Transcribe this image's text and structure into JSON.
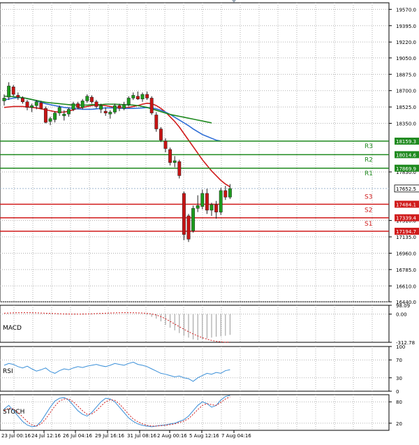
{
  "chart_data": {
    "type": "candlestick",
    "x_labels": [
      "23 Jul 00:16",
      "24 Jul 12:16",
      "26 Jul 04:16",
      "29 Jul 16:16",
      "31 Jul 08:16",
      "2 Aug 00:16",
      "5 Aug 12:16",
      "7 Aug 04:16"
    ],
    "price_axis": {
      "ticks": [
        "19570.0",
        "19395.0",
        "19220.0",
        "19050.0",
        "18875.0",
        "18700.0",
        "18525.0",
        "18350.0",
        "17830.0",
        "17310.0",
        "17135.0",
        "16960.0",
        "16785.0",
        "16610.0",
        "16440.0"
      ],
      "ylim": [
        16440,
        19640
      ]
    },
    "candles": [
      {
        "o": 18590,
        "h": 18660,
        "l": 18540,
        "c": 18620
      },
      {
        "o": 18630,
        "h": 18790,
        "l": 18600,
        "c": 18750
      },
      {
        "o": 18740,
        "h": 18760,
        "l": 18640,
        "c": 18660
      },
      {
        "o": 18650,
        "h": 18680,
        "l": 18600,
        "c": 18630
      },
      {
        "o": 18620,
        "h": 18640,
        "l": 18560,
        "c": 18580
      },
      {
        "o": 18580,
        "h": 18600,
        "l": 18490,
        "c": 18520
      },
      {
        "o": 18520,
        "h": 18560,
        "l": 18470,
        "c": 18540
      },
      {
        "o": 18540,
        "h": 18600,
        "l": 18500,
        "c": 18580
      },
      {
        "o": 18570,
        "h": 18590,
        "l": 18500,
        "c": 18510
      },
      {
        "o": 18510,
        "h": 18530,
        "l": 18350,
        "c": 18360
      },
      {
        "o": 18370,
        "h": 18420,
        "l": 18330,
        "c": 18400
      },
      {
        "o": 18390,
        "h": 18480,
        "l": 18360,
        "c": 18460
      },
      {
        "o": 18460,
        "h": 18540,
        "l": 18430,
        "c": 18520
      },
      {
        "o": 18430,
        "h": 18490,
        "l": 18380,
        "c": 18450
      },
      {
        "o": 18450,
        "h": 18520,
        "l": 18420,
        "c": 18500
      },
      {
        "o": 18500,
        "h": 18580,
        "l": 18480,
        "c": 18560
      },
      {
        "o": 18560,
        "h": 18580,
        "l": 18500,
        "c": 18520
      },
      {
        "o": 18520,
        "h": 18610,
        "l": 18500,
        "c": 18590
      },
      {
        "o": 18590,
        "h": 18660,
        "l": 18570,
        "c": 18640
      },
      {
        "o": 18630,
        "h": 18650,
        "l": 18560,
        "c": 18580
      },
      {
        "o": 18580,
        "h": 18600,
        "l": 18510,
        "c": 18530
      },
      {
        "o": 18500,
        "h": 18560,
        "l": 18460,
        "c": 18540
      },
      {
        "o": 18480,
        "h": 18520,
        "l": 18430,
        "c": 18460
      },
      {
        "o": 18450,
        "h": 18490,
        "l": 18400,
        "c": 18470
      },
      {
        "o": 18470,
        "h": 18560,
        "l": 18450,
        "c": 18540
      },
      {
        "o": 18540,
        "h": 18560,
        "l": 18480,
        "c": 18510
      },
      {
        "o": 18510,
        "h": 18580,
        "l": 18490,
        "c": 18550
      },
      {
        "o": 18550,
        "h": 18640,
        "l": 18530,
        "c": 18620
      },
      {
        "o": 18620,
        "h": 18680,
        "l": 18600,
        "c": 18650
      },
      {
        "o": 18640,
        "h": 18690,
        "l": 18600,
        "c": 18610
      },
      {
        "o": 18610,
        "h": 18680,
        "l": 18580,
        "c": 18660
      },
      {
        "o": 18660,
        "h": 18690,
        "l": 18600,
        "c": 18620
      },
      {
        "o": 18620,
        "h": 18640,
        "l": 18440,
        "c": 18460
      },
      {
        "o": 18440,
        "h": 18470,
        "l": 18260,
        "c": 18290
      },
      {
        "o": 18290,
        "h": 18310,
        "l": 18150,
        "c": 18170
      },
      {
        "o": 18160,
        "h": 18190,
        "l": 18040,
        "c": 18080
      },
      {
        "o": 18070,
        "h": 18090,
        "l": 17900,
        "c": 17930
      },
      {
        "o": 17930,
        "h": 18000,
        "l": 17880,
        "c": 17950
      },
      {
        "o": 17940,
        "h": 17960,
        "l": 17760,
        "c": 17790
      },
      {
        "o": 17600,
        "h": 17620,
        "l": 17100,
        "c": 17160
      },
      {
        "o": 17360,
        "h": 17380,
        "l": 17080,
        "c": 17110
      },
      {
        "o": 17200,
        "h": 17470,
        "l": 17180,
        "c": 17440
      },
      {
        "o": 17440,
        "h": 17580,
        "l": 17400,
        "c": 17470
      },
      {
        "o": 17460,
        "h": 17640,
        "l": 17430,
        "c": 17600
      },
      {
        "o": 17600,
        "h": 17650,
        "l": 17380,
        "c": 17420
      },
      {
        "o": 17420,
        "h": 17500,
        "l": 17360,
        "c": 17480
      },
      {
        "o": 17480,
        "h": 17520,
        "l": 17330,
        "c": 17400
      },
      {
        "o": 17400,
        "h": 17660,
        "l": 17370,
        "c": 17630
      },
      {
        "o": 17630,
        "h": 17680,
        "l": 17530,
        "c": 17560
      },
      {
        "o": 17560,
        "h": 17700,
        "l": 17540,
        "c": 17652
      }
    ],
    "moving_averages": [
      {
        "color": "#d01b1b",
        "values": [
          18520,
          18525,
          18530,
          18530,
          18530,
          18525,
          18520,
          18515,
          18505,
          18495,
          18485,
          18475,
          18470,
          18470,
          18480,
          18495,
          18510,
          18520,
          18530,
          18540,
          18545,
          18545,
          18540,
          18530,
          18520,
          18515,
          18515,
          18520,
          18530,
          18540,
          18555,
          18565,
          18560,
          18540,
          18510,
          18470,
          18420,
          18370,
          18310,
          18240,
          18170,
          18100,
          18030,
          17960,
          17900,
          17840,
          17790,
          17740,
          17700,
          17670
        ]
      },
      {
        "color": "#2f6fd6",
        "values": [
          18600,
          18610,
          18620,
          18625,
          18625,
          18615,
          18605,
          18590,
          18575,
          18560,
          18550,
          18540,
          18530,
          18520,
          18515,
          18510,
          18505,
          18500,
          18500,
          18500,
          18505,
          18510,
          18515,
          18515,
          18515,
          18512,
          18510,
          18510,
          18510,
          18512,
          18515,
          18518,
          18515,
          18505,
          18490,
          18470,
          18445,
          18415,
          18385,
          18355,
          18325,
          18290,
          18260,
          18230,
          18210,
          18190,
          18170,
          18160
        ]
      },
      {
        "color": "#1f8a1f",
        "values": [
          18640,
          18640,
          18635,
          18630,
          18625,
          18615,
          18605,
          18595,
          18585,
          18575,
          18570,
          18565,
          18560,
          18555,
          18550,
          18545,
          18545,
          18545,
          18545,
          18550,
          18550,
          18550,
          18555,
          18555,
          18555,
          18552,
          18550,
          18548,
          18545,
          18540,
          18530,
          18520,
          18505,
          18490,
          18475,
          18460,
          18445,
          18435,
          18425,
          18415,
          18405,
          18395,
          18385,
          18375,
          18365,
          18355
        ]
      }
    ],
    "levels": [
      {
        "name": "R3",
        "value": 18159.3,
        "label": "18159.3",
        "color": "#1f8a1f"
      },
      {
        "name": "R2",
        "value": 18014.6,
        "label": "18014.6",
        "color": "#1f8a1f"
      },
      {
        "name": "R1",
        "value": 17869.9,
        "label": "17869.9",
        "color": "#1f8a1f"
      },
      {
        "name": "S3",
        "value": 17484.1,
        "label": "17484.1",
        "color": "#d01b1b"
      },
      {
        "name": "S2",
        "value": 17339.4,
        "label": "17339.4",
        "color": "#d01b1b"
      },
      {
        "name": "S1",
        "value": 17194.7,
        "label": "17194.7",
        "color": "#d01b1b"
      }
    ],
    "current_price": {
      "value": 17652.5,
      "label": "17652.5"
    },
    "macd": {
      "label": "MACD",
      "ticks": [
        "98.09",
        "0.00",
        "-312.78"
      ],
      "ylim": [
        -312.78,
        98.09
      ],
      "signal": [
        10,
        12,
        14,
        15,
        16,
        16,
        15,
        14,
        12,
        10,
        8,
        6,
        4,
        2,
        1,
        0,
        0,
        1,
        2,
        4,
        6,
        8,
        10,
        12,
        14,
        15,
        16,
        16,
        15,
        14,
        12,
        8,
        2,
        -10,
        -28,
        -52,
        -80,
        -110,
        -140,
        -168,
        -195,
        -220,
        -242,
        -262,
        -278,
        -292,
        -302,
        -308,
        -312,
        -310
      ],
      "histogram": [
        0,
        0,
        0,
        0,
        0,
        0,
        0,
        0,
        0,
        0,
        0,
        0,
        0,
        0,
        0,
        0,
        0,
        0,
        0,
        0,
        0,
        0,
        0,
        0,
        0,
        0,
        0,
        0,
        0,
        0,
        0,
        -10,
        -30,
        -50,
        -80,
        -120,
        -150,
        -180,
        -210,
        -240,
        -260,
        -280,
        -290,
        -280,
        -270,
        -260,
        -250,
        -245,
        -240,
        -230
      ]
    },
    "rsi": {
      "label": "RSI",
      "ticks": [
        "100",
        "70",
        "30",
        "0"
      ],
      "levels": [
        70,
        30
      ],
      "ylim": [
        0,
        100
      ],
      "values": [
        58,
        62,
        60,
        55,
        52,
        56,
        50,
        45,
        48,
        52,
        44,
        40,
        46,
        50,
        48,
        52,
        55,
        53,
        56,
        58,
        60,
        57,
        55,
        58,
        62,
        60,
        58,
        62,
        65,
        60,
        58,
        55,
        50,
        45,
        40,
        38,
        35,
        32,
        34,
        30,
        28,
        22,
        30,
        35,
        40,
        38,
        42,
        40,
        46,
        48
      ]
    },
    "stoch": {
      "label": "STOCH",
      "ticks": [
        "80",
        "20"
      ],
      "levels": [
        80,
        20
      ],
      "ylim": [
        0,
        100
      ],
      "k": [
        60,
        70,
        55,
        40,
        25,
        15,
        10,
        12,
        25,
        45,
        65,
        82,
        90,
        92,
        85,
        70,
        55,
        45,
        40,
        50,
        65,
        80,
        90,
        88,
        80,
        65,
        50,
        35,
        25,
        18,
        14,
        12,
        10,
        12,
        14,
        15,
        18,
        20,
        25,
        30,
        40,
        55,
        70,
        80,
        75,
        65,
        70,
        85,
        95,
        98
      ],
      "d": [
        55,
        62,
        60,
        50,
        38,
        25,
        15,
        12,
        18,
        32,
        50,
        68,
        82,
        88,
        88,
        80,
        68,
        55,
        45,
        46,
        55,
        68,
        80,
        86,
        84,
        74,
        60,
        45,
        32,
        24,
        18,
        14,
        12,
        12,
        13,
        14,
        16,
        18,
        22,
        26,
        33,
        45,
        58,
        70,
        75,
        72,
        70,
        78,
        88,
        94
      ]
    }
  }
}
